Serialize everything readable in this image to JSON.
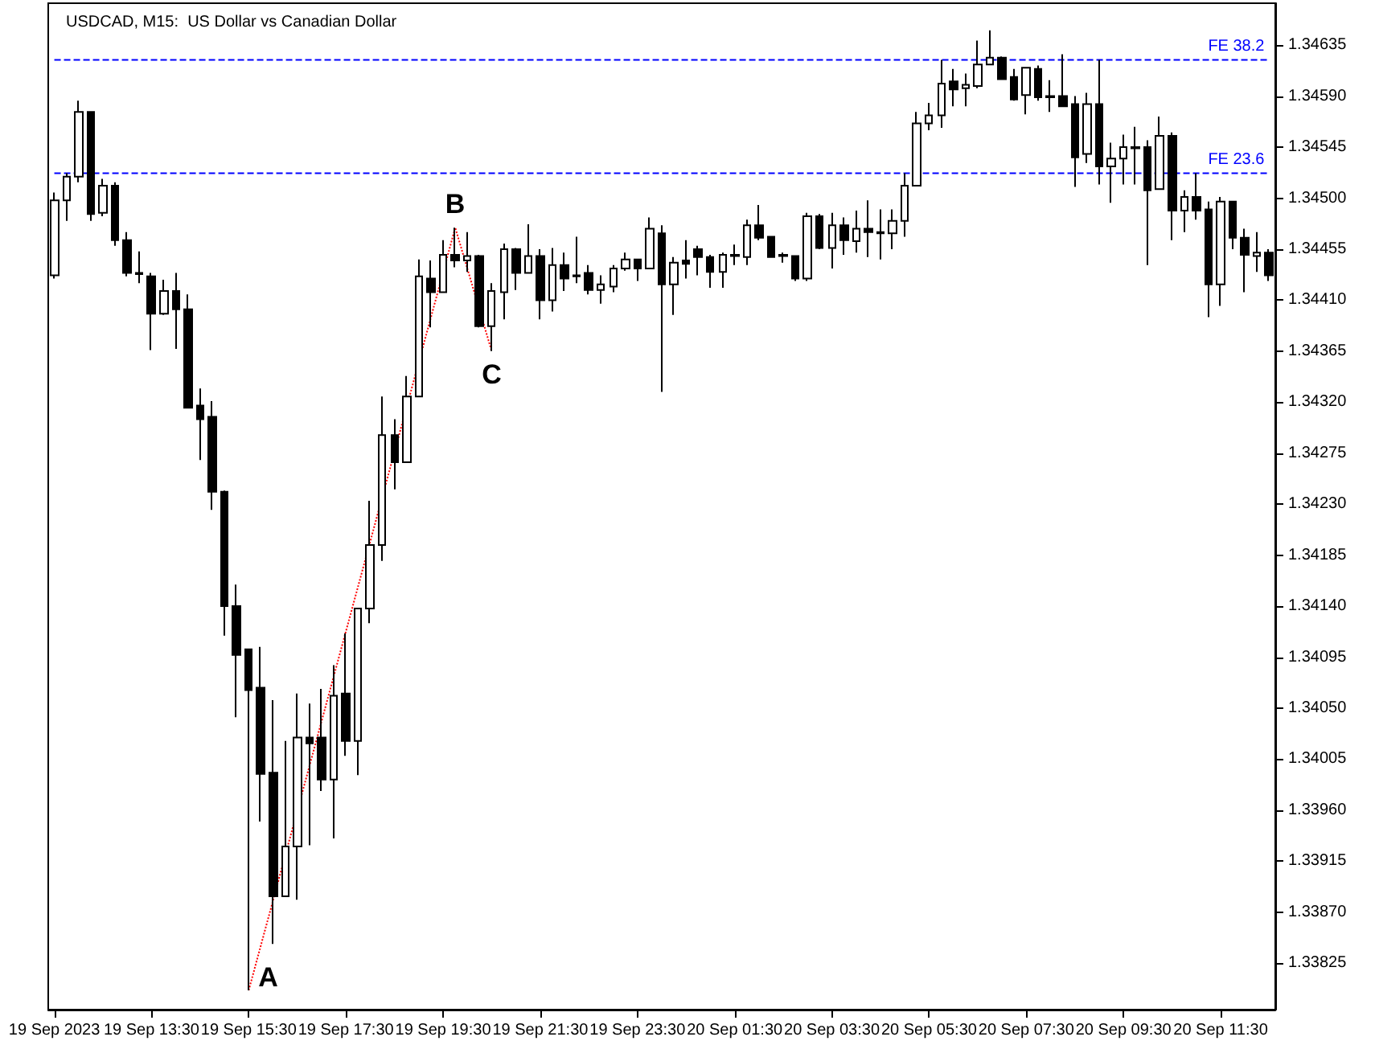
{
  "chart_data": {
    "type": "candlestick",
    "title": "USDCAD, M15:  US Dollar vs Canadian Dollar",
    "categories": [
      "19 Sep 2023",
      null,
      null,
      null,
      null,
      null,
      null,
      null,
      "19 Sep 13:30",
      null,
      null,
      null,
      null,
      null,
      null,
      null,
      "19 Sep 15:30",
      null,
      null,
      null,
      null,
      null,
      null,
      null,
      "19 Sep 17:30",
      null,
      null,
      null,
      null,
      null,
      null,
      null,
      "19 Sep 19:30",
      null,
      null,
      null,
      null,
      null,
      null,
      null,
      "19 Sep 21:30",
      null,
      null,
      null,
      null,
      null,
      null,
      null,
      "19 Sep 23:30",
      null,
      null,
      null,
      null,
      null,
      null,
      null,
      "20 Sep 01:30",
      null,
      null,
      null,
      null,
      null,
      null,
      null,
      "20 Sep 03:30",
      null,
      null,
      null,
      null,
      null,
      null,
      null,
      "20 Sep 05:30",
      null,
      null,
      null,
      null,
      null,
      null,
      null,
      "20 Sep 07:30",
      null,
      null,
      null,
      null,
      null,
      null,
      null,
      "20 Sep 09:30",
      null,
      null,
      null,
      null,
      null,
      null,
      null,
      "20 Sep 11:30",
      null,
      null,
      null,
      null
    ],
    "ylim": [
      1.33784,
      1.34672
    ],
    "yticks": [
      1.33825,
      {
        "value": 1.3387,
        "label": "1.33870"
      },
      1.33915,
      {
        "value": 1.3396,
        "label": "1.33960"
      },
      1.34005,
      {
        "value": 1.3405,
        "label": "1.34050"
      },
      1.34095,
      {
        "value": 1.3414,
        "label": "1.34140"
      },
      1.34185,
      {
        "value": 1.3423,
        "label": "1.34230"
      },
      1.34275,
      {
        "value": 1.3432,
        "label": "1.34320"
      },
      1.34365,
      {
        "value": 1.3441,
        "label": "1.34410"
      },
      1.34455,
      {
        "value": 1.345,
        "label": "1.34500"
      },
      1.34545,
      {
        "value": 1.3459,
        "label": "1.34590"
      },
      1.34635
    ],
    "ref_lines": [
      {
        "axis": "y",
        "value": 1.34622,
        "label": "FE 38.2",
        "color": "#0000ff",
        "line_style": "dashed"
      },
      {
        "axis": "y",
        "value": 1.34522,
        "label": "FE 23.6",
        "color": "#0000ff",
        "line_style": "dashed"
      }
    ],
    "series": [
      {
        "color": "#000000",
        "ohlc": [
          [
            1.34432,
            1.34505,
            1.34429,
            1.34498
          ],
          [
            1.34498,
            1.34522,
            1.3448,
            1.34519
          ],
          [
            1.34519,
            1.34586,
            1.34514,
            1.34576
          ],
          [
            1.34576,
            1.34576,
            1.3448,
            1.34486
          ],
          [
            1.34487,
            1.34517,
            1.34484,
            1.34511
          ],
          [
            1.34511,
            1.34514,
            1.34458,
            1.34463
          ],
          [
            1.34463,
            1.3447,
            1.34431,
            1.34434
          ],
          [
            1.34434,
            1.34453,
            1.34425,
            1.34433
          ],
          [
            1.34431,
            1.34434,
            1.34366,
            1.34398
          ],
          [
            1.34398,
            1.34428,
            1.34397,
            1.34418
          ],
          [
            1.34418,
            1.34434,
            1.34367,
            1.34402
          ],
          [
            1.34402,
            1.34415,
            1.34315,
            1.34315
          ],
          [
            1.34317,
            1.34332,
            1.34269,
            1.34305
          ],
          [
            1.34307,
            1.34321,
            1.34225,
            1.34241
          ],
          [
            1.34241,
            1.34242,
            1.34114,
            1.3414
          ],
          [
            1.3414,
            1.34159,
            1.34042,
            1.34097
          ],
          [
            1.34102,
            1.34102,
            1.33801,
            1.34066
          ],
          [
            1.34068,
            1.34104,
            1.3395,
            1.33992
          ],
          [
            1.33993,
            1.34057,
            1.33842,
            1.33884
          ],
          [
            1.33884,
            1.34021,
            1.33884,
            1.33928
          ],
          [
            1.33928,
            1.34063,
            1.33881,
            1.34024
          ],
          [
            1.34024,
            1.34054,
            1.33929,
            1.34019
          ],
          [
            1.34024,
            1.34067,
            1.33977,
            1.33987
          ],
          [
            1.33987,
            1.34088,
            1.33935,
            1.34061
          ],
          [
            1.34063,
            1.34116,
            1.34008,
            1.34021
          ],
          [
            1.34021,
            1.34138,
            1.33991,
            1.34138
          ],
          [
            1.34138,
            1.34233,
            1.34125,
            1.34194
          ],
          [
            1.34194,
            1.34325,
            1.3418,
            1.34291
          ],
          [
            1.34291,
            1.34305,
            1.34243,
            1.34267
          ],
          [
            1.34267,
            1.34343,
            1.34267,
            1.34325
          ],
          [
            1.34325,
            1.34446,
            1.34325,
            1.34431
          ],
          [
            1.34429,
            1.34445,
            1.34386,
            1.34417
          ],
          [
            1.34417,
            1.34463,
            1.34417,
            1.3445
          ],
          [
            1.3445,
            1.34474,
            1.34439,
            1.34445
          ],
          [
            1.34445,
            1.3447,
            1.34435,
            1.34449
          ],
          [
            1.34449,
            1.3445,
            1.34386,
            1.34387
          ],
          [
            1.34387,
            1.34425,
            1.34365,
            1.34418
          ],
          [
            1.34417,
            1.3446,
            1.34393,
            1.34455
          ],
          [
            1.34455,
            1.34456,
            1.34419,
            1.34434
          ],
          [
            1.34434,
            1.34477,
            1.34434,
            1.34449
          ],
          [
            1.34449,
            1.34455,
            1.34393,
            1.3441
          ],
          [
            1.3441,
            1.34456,
            1.344,
            1.34441
          ],
          [
            1.34441,
            1.34452,
            1.34418,
            1.34429
          ],
          [
            1.34432,
            1.34466,
            1.34425,
            1.34431
          ],
          [
            1.34434,
            1.34441,
            1.34415,
            1.34419
          ],
          [
            1.34419,
            1.34432,
            1.34407,
            1.34424
          ],
          [
            1.34422,
            1.34441,
            1.34417,
            1.34438
          ],
          [
            1.34438,
            1.34452,
            1.34436,
            1.34446
          ],
          [
            1.34446,
            1.34446,
            1.34427,
            1.34438
          ],
          [
            1.34438,
            1.34483,
            1.34438,
            1.34473
          ],
          [
            1.34469,
            1.34476,
            1.34329,
            1.34424
          ],
          [
            1.34424,
            1.34448,
            1.34397,
            1.34443
          ],
          [
            1.34445,
            1.34463,
            1.34429,
            1.34442
          ],
          [
            1.34455,
            1.34458,
            1.34432,
            1.34448
          ],
          [
            1.34448,
            1.3445,
            1.34421,
            1.34435
          ],
          [
            1.34435,
            1.34452,
            1.34421,
            1.3445
          ],
          [
            1.34449,
            1.34459,
            1.34441,
            1.3445
          ],
          [
            1.34448,
            1.34481,
            1.34441,
            1.34476
          ],
          [
            1.34476,
            1.34494,
            1.34463,
            1.34465
          ],
          [
            1.34466,
            1.34466,
            1.34448,
            1.34448
          ],
          [
            1.34449,
            1.34452,
            1.34443,
            1.3445
          ],
          [
            1.34449,
            1.34449,
            1.34427,
            1.34429
          ],
          [
            1.34429,
            1.34487,
            1.34427,
            1.34484
          ],
          [
            1.34484,
            1.34486,
            1.34455,
            1.34456
          ],
          [
            1.34456,
            1.34487,
            1.34438,
            1.34476
          ],
          [
            1.34476,
            1.34483,
            1.3445,
            1.34463
          ],
          [
            1.34462,
            1.34489,
            1.34452,
            1.34473
          ],
          [
            1.34473,
            1.34498,
            1.34448,
            1.3447
          ],
          [
            1.3447,
            1.3449,
            1.34446,
            1.34469
          ],
          [
            1.34469,
            1.3449,
            1.34455,
            1.3448
          ],
          [
            1.3448,
            1.34522,
            1.34466,
            1.34511
          ],
          [
            1.34511,
            1.34576,
            1.34511,
            1.34566
          ],
          [
            1.34566,
            1.34584,
            1.3456,
            1.34573
          ],
          [
            1.34573,
            1.34622,
            1.34562,
            1.34601
          ],
          [
            1.34603,
            1.34614,
            1.34581,
            1.34596
          ],
          [
            1.34597,
            1.3461,
            1.34581,
            1.346
          ],
          [
            1.34599,
            1.34639,
            1.34597,
            1.34618
          ],
          [
            1.34618,
            1.34648,
            1.34618,
            1.34624
          ],
          [
            1.34624,
            1.34625,
            1.34605,
            1.34605
          ],
          [
            1.34607,
            1.34614,
            1.34586,
            1.34587
          ],
          [
            1.34591,
            1.34615,
            1.34574,
            1.34615
          ],
          [
            1.34614,
            1.34617,
            1.34586,
            1.34589
          ],
          [
            1.3459,
            1.34604,
            1.34576,
            1.34589
          ],
          [
            1.3459,
            1.34627,
            1.34581,
            1.34581
          ],
          [
            1.34583,
            1.3459,
            1.3451,
            1.34536
          ],
          [
            1.34539,
            1.34593,
            1.34531,
            1.34583
          ],
          [
            1.34583,
            1.34622,
            1.34512,
            1.34528
          ],
          [
            1.34528,
            1.34549,
            1.34496,
            1.34535
          ],
          [
            1.34535,
            1.34556,
            1.34512,
            1.34545
          ],
          [
            1.34545,
            1.34563,
            1.34512,
            1.34544
          ],
          [
            1.34545,
            1.34551,
            1.34441,
            1.34507
          ],
          [
            1.34508,
            1.34572,
            1.34508,
            1.34555
          ],
          [
            1.34555,
            1.34558,
            1.34463,
            1.34489
          ],
          [
            1.34489,
            1.34507,
            1.3447,
            1.34501
          ],
          [
            1.34501,
            1.34522,
            1.34481,
            1.34489
          ],
          [
            1.3449,
            1.34497,
            1.34395,
            1.34424
          ],
          [
            1.34424,
            1.34501,
            1.34405,
            1.34497
          ],
          [
            1.34497,
            1.34497,
            1.34455,
            1.34465
          ],
          [
            1.34465,
            1.34473,
            1.34417,
            1.3445
          ],
          [
            1.34449,
            1.3447,
            1.34435,
            1.34452
          ],
          [
            1.34452,
            1.34455,
            1.34427,
            1.34432
          ]
        ]
      },
      {
        "type": "line",
        "color": "#ff0000",
        "line_style": "dotted",
        "values": [
          null,
          null,
          null,
          null,
          null,
          null,
          null,
          null,
          null,
          null,
          null,
          null,
          null,
          null,
          null,
          null,
          1.33801,
          null,
          null,
          null,
          null,
          null,
          null,
          null,
          null,
          null,
          null,
          null,
          null,
          null,
          null,
          null,
          null,
          1.34474,
          null,
          null,
          1.34365,
          null,
          null,
          null,
          null,
          null,
          null,
          null,
          null,
          null,
          null,
          null,
          null,
          null,
          null,
          null,
          null,
          null,
          null,
          null,
          null,
          null,
          null,
          null,
          null,
          null,
          null,
          null,
          null,
          null,
          null,
          null,
          null,
          null,
          null,
          null,
          null,
          null,
          null,
          null,
          null,
          null,
          null,
          null,
          null,
          null,
          null,
          null,
          null,
          null,
          null,
          null,
          null,
          null,
          null,
          null,
          null,
          null,
          null,
          null,
          null,
          null,
          null,
          null,
          null
        ],
        "value_labels": [
          null,
          null,
          null,
          null,
          null,
          null,
          null,
          null,
          null,
          null,
          null,
          null,
          null,
          null,
          null,
          null,
          "A",
          null,
          null,
          null,
          null,
          null,
          null,
          null,
          null,
          null,
          null,
          null,
          null,
          null,
          null,
          null,
          null,
          "B",
          null,
          null,
          "C",
          null,
          null,
          null,
          null,
          null,
          null,
          null,
          null,
          null,
          null,
          null,
          null,
          null,
          null,
          null,
          null,
          null,
          null,
          null,
          null,
          null,
          null,
          null,
          null,
          null,
          null,
          null,
          null,
          null,
          null,
          null,
          null,
          null,
          null,
          null,
          null,
          null,
          null,
          null,
          null,
          null,
          null,
          null,
          null,
          null,
          null,
          null,
          null,
          null,
          null,
          null,
          null,
          null,
          null,
          null,
          null,
          null,
          null,
          null,
          null,
          null,
          null,
          null,
          null
        ]
      }
    ]
  }
}
